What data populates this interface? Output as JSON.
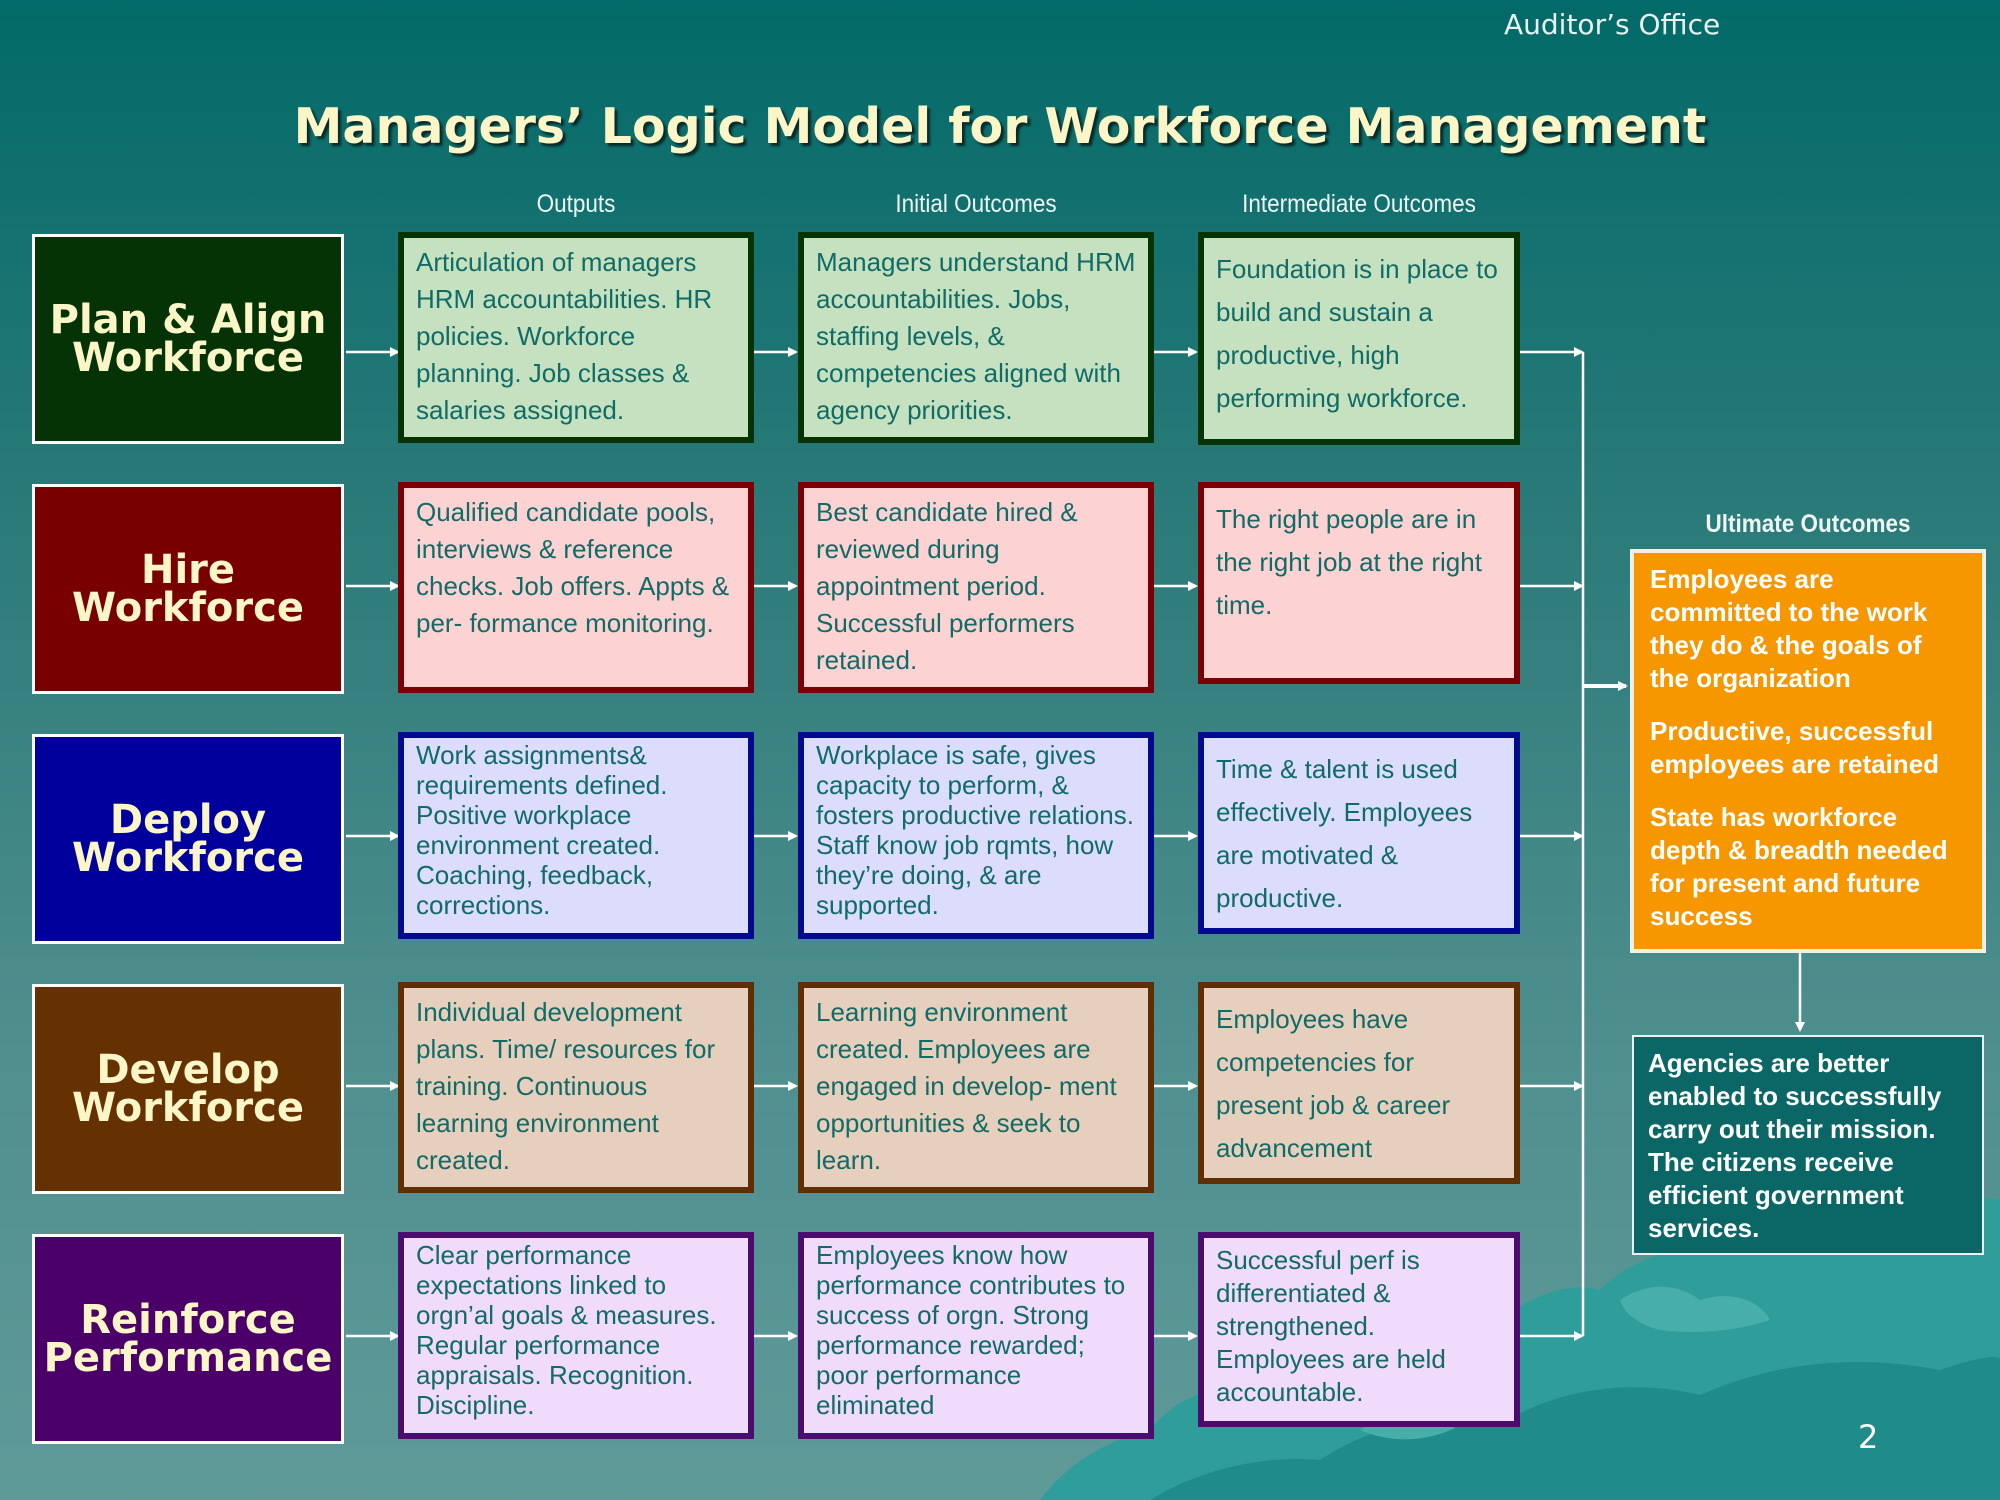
{
  "header": {
    "office": "Auditor’s Office",
    "title": "Managers’ Logic Model for Workforce Management",
    "page_number": "2"
  },
  "columns": {
    "outputs": "Outputs",
    "initial": "Initial Outcomes",
    "intermediate": "Intermediate Outcomes",
    "ultimate": "Ultimate Outcomes"
  },
  "rows": [
    {
      "label": [
        "Plan & Align",
        "Workforce"
      ],
      "label_color": "#063305",
      "border_color": "#063305",
      "fill_color": "#c5e1bf",
      "text_color": "#116b67",
      "outputs": "Articulation of managers HRM accountabilities. HR policies. Workforce planning. Job classes & salaries assigned.",
      "initial": "Managers understand HRM accountabilities. Jobs, staffing levels, & competencies aligned with agency priorities.",
      "intermediate": "Foundation is in place to build and sustain a productive, high performing workforce."
    },
    {
      "label": [
        "Hire",
        "Workforce"
      ],
      "label_color": "#790000",
      "border_color": "#7a0003",
      "fill_color": "#fdd2d2",
      "text_color": "#116b67",
      "outputs": "Qualified candidate pools, interviews & reference checks. Job offers. Appts & per- formance monitoring.",
      "initial": "Best candidate hired & reviewed during appointment period. Successful performers retained.",
      "intermediate": "The right people are in the right job at the right time."
    },
    {
      "label": [
        "Deploy",
        "Workforce"
      ],
      "label_color": "#01009c",
      "border_color": "#020a8c",
      "fill_color": "#dcdcfd",
      "text_color": "#116b67",
      "outputs": "Work assignments& requirements defined. Positive workplace environment created. Coaching, feedback, corrections.",
      "initial": "Workplace is safe, gives capacity to perform, & fosters productive relations. Staff know job rqmts, how they’re doing, & are supported.",
      "intermediate": "Time & talent is used effectively. Employees are motivated & productive."
    },
    {
      "label": [
        "Develop",
        "Workforce"
      ],
      "label_color": "#653100",
      "border_color": "#5f2e05",
      "fill_color": "#e7cfbd",
      "text_color": "#116b67",
      "outputs": "Individual development plans. Time/ resources for training. Continuous learning environment created.",
      "initial": "Learning environment created. Employees are engaged in develop- ment opportunities & seek to learn.",
      "intermediate": "Employees have competencies for present job & career advancement"
    },
    {
      "label": [
        "Reinforce",
        "Performance"
      ],
      "label_color": "#4a0068",
      "border_color": "#4b0c6e",
      "fill_color": "#f0dbfb",
      "text_color": "#116b67",
      "outputs": "Clear performance expectations linked to orgn’al goals & measures. Regular performance appraisals. Recognition. Discipline.",
      "initial": "Employees know how performance contributes to success of orgn. Strong performance rewarded; poor performance eliminated",
      "intermediate": "Successful perf is differentiated & strengthened. Employees are held accountable."
    }
  ],
  "ultimate_outcomes": [
    "Employees are committed to the work they do & the goals of the organization",
    "Productive, successful employees are retained",
    "State has workforce depth & breadth needed for present and future success"
  ],
  "agency_outcome": "Agencies are better enabled to successfully carry out their mission. The citizens receive efficient government services."
}
